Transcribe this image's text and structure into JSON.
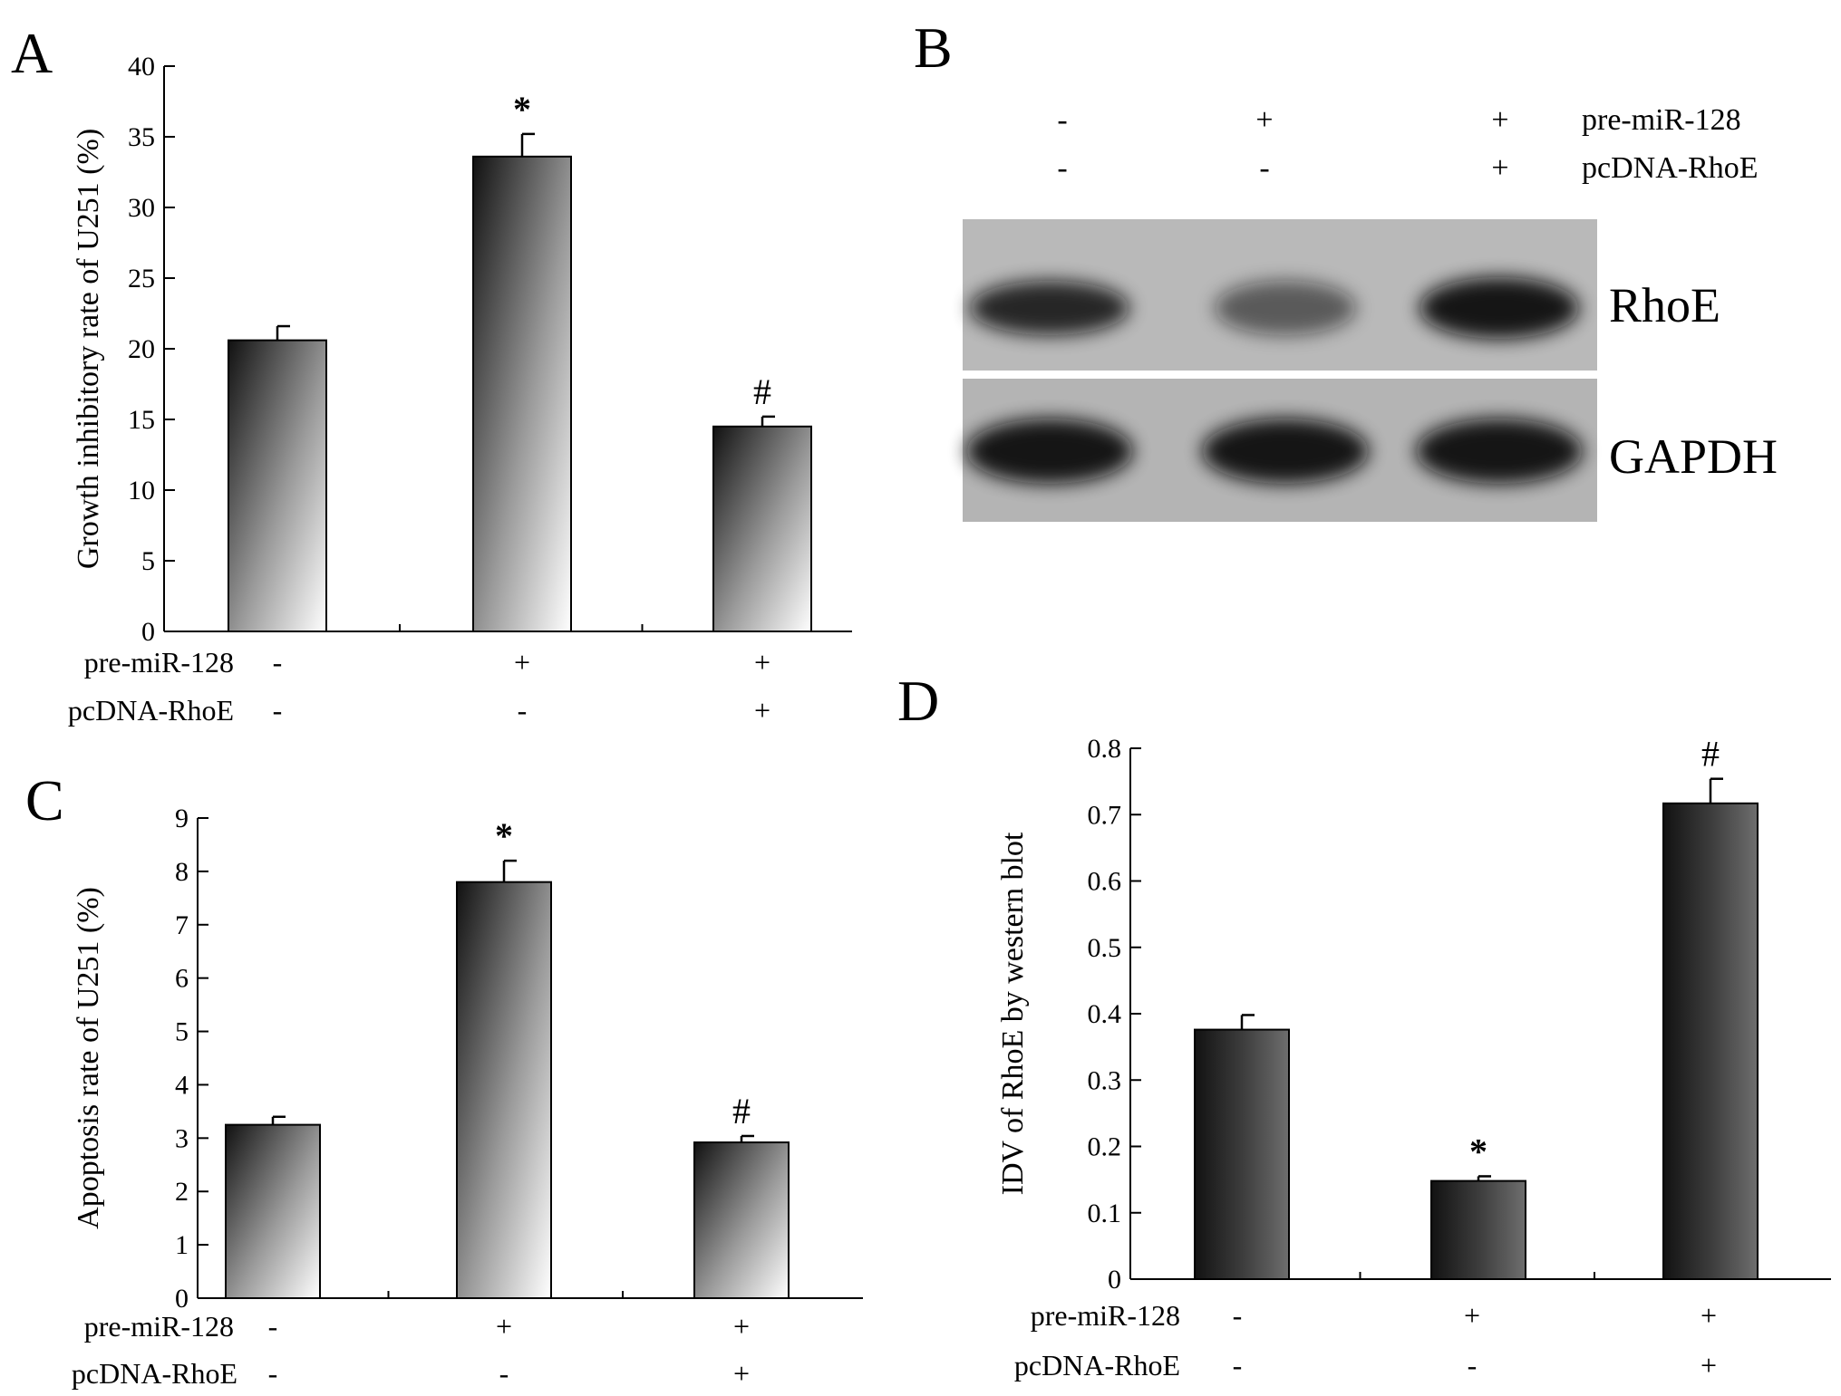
{
  "panels": {
    "A": "A",
    "B": "B",
    "C": "C",
    "D": "D"
  },
  "conditions": {
    "row1": "pre-miR-128",
    "row2": "pcDNA-RhoE",
    "pre": [
      "-",
      "+",
      "+"
    ],
    "pc": [
      "-",
      "-",
      "+"
    ]
  },
  "chart_data": [
    {
      "panel": "A",
      "type": "bar",
      "ylabel": "Growth inhibitory rate of U251 (%)",
      "ylim": [
        0,
        40
      ],
      "yticks": [
        0,
        5,
        10,
        15,
        20,
        25,
        30,
        35,
        40
      ],
      "values": [
        20.6,
        33.6,
        14.5
      ],
      "errors": [
        1.0,
        1.6,
        0.7
      ],
      "annotations": [
        "",
        "*",
        "#"
      ],
      "style": "diagonal-gradient"
    },
    {
      "panel": "C",
      "type": "bar",
      "ylabel": "Apoptosis rate of U251 (%)",
      "ylim": [
        0,
        9
      ],
      "yticks": [
        0,
        1,
        2,
        3,
        4,
        5,
        6,
        7,
        8,
        9
      ],
      "values": [
        3.25,
        7.8,
        2.92
      ],
      "errors": [
        0.15,
        0.4,
        0.12
      ],
      "annotations": [
        "",
        "*",
        "#"
      ],
      "style": "diagonal-gradient"
    },
    {
      "panel": "D",
      "type": "bar",
      "ylabel": "IDV of RhoE by western blot",
      "ylim": [
        0,
        0.8
      ],
      "yticks": [
        "0",
        "0.1",
        "0.2",
        "0.3",
        "0.4",
        "0.5",
        "0.6",
        "0.7",
        "0.8"
      ],
      "values": [
        0.376,
        0.148,
        0.717
      ],
      "errors": [
        0.022,
        0.007,
        0.037
      ],
      "annotations": [
        "",
        "*",
        "#"
      ],
      "style": "horizontal-gradient"
    }
  ],
  "blot": {
    "bands": [
      "RhoE",
      "GAPDH"
    ],
    "header_pre": [
      "-",
      "+",
      "+"
    ],
    "header_pc": [
      "-",
      "-",
      "+"
    ],
    "header_label1": "pre-miR-128",
    "header_label2": "pcDNA-RhoE",
    "rhoe_intensity": [
      0.85,
      0.55,
      0.95
    ],
    "gapdh_intensity": [
      0.95,
      0.95,
      0.95
    ],
    "colors": {
      "membrane": "#b9b9b9",
      "band": "#111111"
    }
  }
}
